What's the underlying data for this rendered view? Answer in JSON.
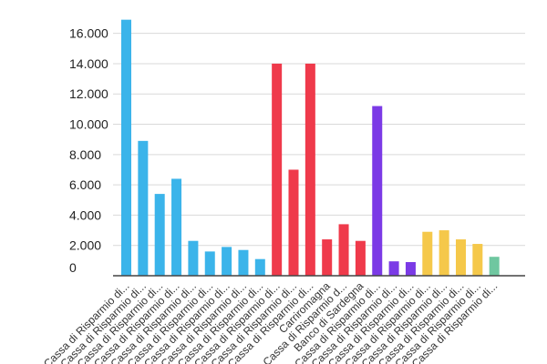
{
  "chart_data": {
    "type": "bar",
    "title": "",
    "xlabel": "",
    "ylabel": "",
    "ylim": [
      0,
      17000
    ],
    "yticks": [
      {
        "value": 0,
        "label": "0"
      },
      {
        "value": 2000,
        "label": "2.000"
      },
      {
        "value": 4000,
        "label": "4.000"
      },
      {
        "value": 6000,
        "label": "6.000"
      },
      {
        "value": 8000,
        "label": "8.000"
      },
      {
        "value": 10000,
        "label": "10.000"
      },
      {
        "value": 12000,
        "label": "12.000"
      },
      {
        "value": 14000,
        "label": "14.000"
      },
      {
        "value": 16000,
        "label": "16.000"
      }
    ],
    "categories": [
      "Cassa di Risparmio di...",
      "Cassa di Risparmio di...",
      "Cassa di Risparmio di...",
      "Cassa di Risparmio di...",
      "Cassa di Risparmio di...",
      "Cassa di Risparmio di...",
      "Cassa di Risparmio di...",
      "Cassa di Risparmio di...",
      "Cassa di Risparmio di...",
      "Cassa di Risparmio di...",
      "Cassa di Risparmio di...",
      "Cassa di Risparmio di...",
      "Carriromagna",
      "Cassa di Risparmio d...",
      "Banco di Sardegna",
      "Cassa di Risparmio di...",
      "Cassa di Risparmio di...",
      "Cassa di Risparmio di...",
      "Cassa di Risparmio di...",
      "Cassa di Risparmio di...",
      "Cassa di Risparmio di...",
      "Cassa di Risparmio di...",
      "Cassa di Risparmio di..."
    ],
    "values": [
      16900,
      8900,
      5400,
      6400,
      2300,
      1600,
      1900,
      1700,
      1100,
      14000,
      7000,
      14000,
      2400,
      3400,
      2300,
      11200,
      950,
      900,
      2900,
      3000,
      2400,
      2100,
      1250
    ],
    "colors": [
      "#3bb4ea",
      "#3bb4ea",
      "#3bb4ea",
      "#3bb4ea",
      "#3bb4ea",
      "#3bb4ea",
      "#3bb4ea",
      "#3bb4ea",
      "#3bb4ea",
      "#ef3a4b",
      "#ef3a4b",
      "#ef3a4b",
      "#ef3a4b",
      "#ef3a4b",
      "#ef3a4b",
      "#7b3ae6",
      "#7b3ae6",
      "#7b3ae6",
      "#f5c84a",
      "#f5c84a",
      "#f5c84a",
      "#f5c84a",
      "#6fc7a0"
    ],
    "grid": true,
    "legend": "none"
  }
}
